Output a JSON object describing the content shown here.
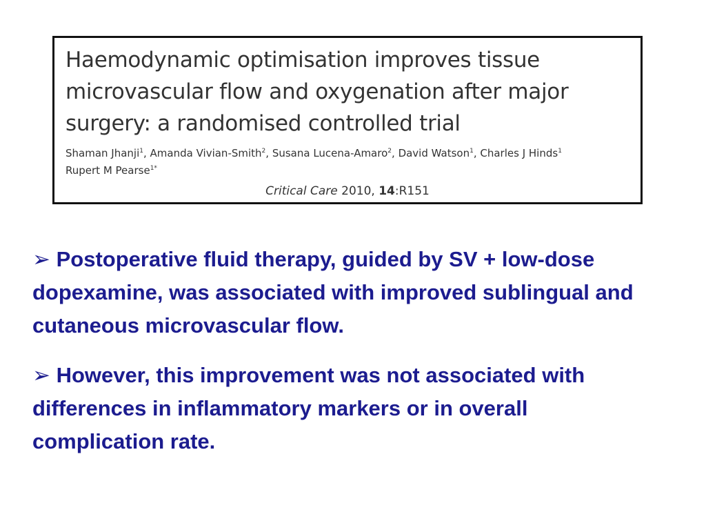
{
  "paper": {
    "title_lines": [
      "Haemodynamic optimisation improves tissue",
      "microvascular flow and oxygenation after major",
      "surgery: a randomised controlled trial"
    ],
    "author_lines": [
      [
        {
          "name": "Shaman Jhanji",
          "sup": "1"
        },
        {
          "name": "Amanda Vivian-Smith",
          "sup": "2"
        },
        {
          "name": "Susana Lucena-Amaro",
          "sup": "2"
        },
        {
          "name": "David Watson",
          "sup": "1"
        },
        {
          "name": "Charles J Hinds",
          "sup": "1"
        }
      ],
      [
        {
          "name": "Rupert M Pearse",
          "sup": "1*"
        }
      ]
    ],
    "journal": "Critical Care",
    "year": "2010,",
    "volume": "14",
    "article": ":R151"
  },
  "bullets": [
    "Postoperative fluid therapy, guided by SV + low-dose dopexamine, was associated with improved sublingual and cutaneous microvascular flow.",
    "However, this improvement was not associated with differences in inflammatory markers or in overall complication rate."
  ]
}
